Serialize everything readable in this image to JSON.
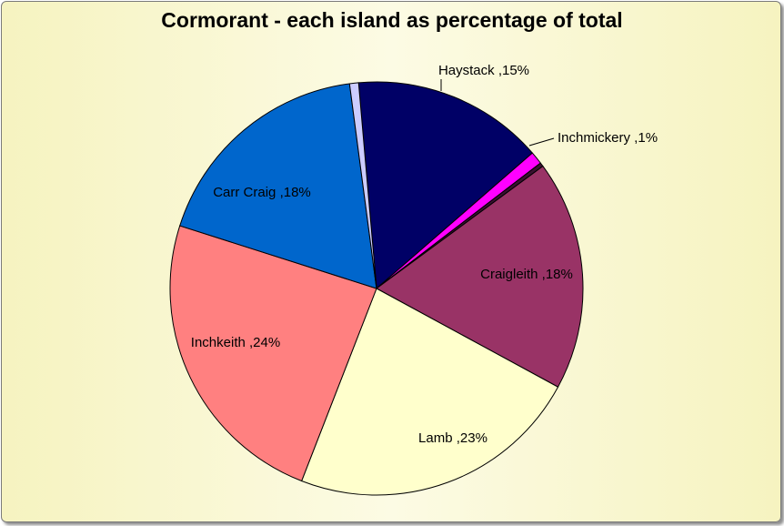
{
  "chart_data": {
    "type": "pie",
    "title": "Cormorant - each island as percentage of total",
    "slices": [
      {
        "name": "Haystack",
        "value": 15,
        "label": "Haystack ,15%",
        "color": "#000066"
      },
      {
        "name": "Inchmickery",
        "value": 1,
        "label": "Inchmickery ,1%",
        "color": "#ff00ff"
      },
      {
        "name": "",
        "value": 0.3,
        "label": "",
        "color": "#3a1030"
      },
      {
        "name": "Craigleith",
        "value": 18,
        "label": "Craigleith ,18%",
        "color": "#993366"
      },
      {
        "name": "Lamb",
        "value": 23,
        "label": "Lamb ,23%",
        "color": "#ffffcc"
      },
      {
        "name": "Inchkeith",
        "value": 24,
        "label": "Inchkeith ,24%",
        "color": "#ff8080"
      },
      {
        "name": "Carr Craig",
        "value": 18,
        "label": "Carr Craig ,18%",
        "color": "#0066cc"
      },
      {
        "name": "",
        "value": 0.7,
        "label": "",
        "color": "#ccccff"
      }
    ],
    "legend": "none",
    "label_position": "inside-and-outside"
  }
}
